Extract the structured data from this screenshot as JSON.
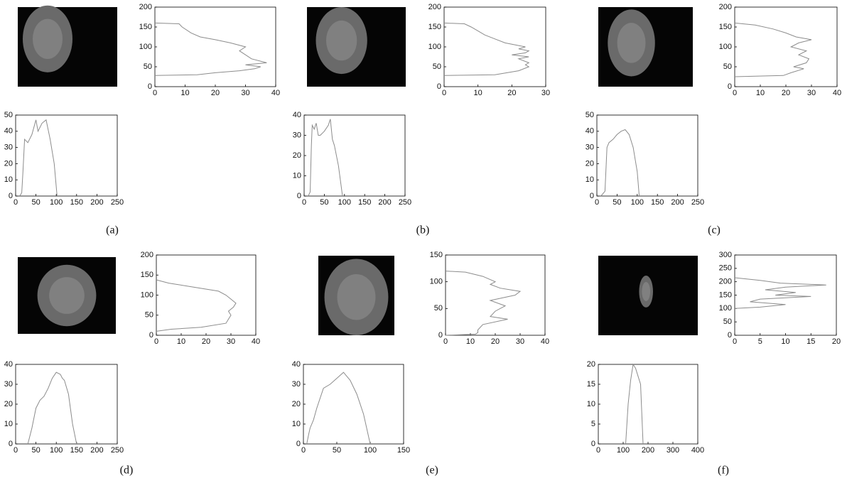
{
  "panel_labels": [
    "(a)",
    "(b)",
    "(c)",
    "(d)",
    "(e)",
    "(f)"
  ],
  "chart_data": [
    {
      "type": "line",
      "orientation": "horizontal",
      "color": "#8c8c8c",
      "xlim": [
        0,
        40
      ],
      "ylim": [
        0,
        200
      ],
      "xticks": [
        0,
        10,
        20,
        30,
        40
      ],
      "yticks": [
        0,
        50,
        100,
        150,
        200
      ],
      "y": [
        28,
        30,
        35,
        40,
        45,
        50,
        55,
        60,
        70,
        80,
        90,
        100,
        110,
        118,
        125,
        135,
        150,
        158,
        160
      ],
      "values": [
        0,
        14,
        20,
        28,
        33,
        35,
        30,
        37,
        32,
        30,
        28,
        30,
        25,
        20,
        15,
        12,
        9,
        8,
        0
      ]
    },
    {
      "type": "line",
      "orientation": "vertical",
      "color": "#8c8c8c",
      "xlim": [
        0,
        250
      ],
      "ylim": [
        0,
        50
      ],
      "xticks": [
        0,
        50,
        100,
        150,
        200,
        250
      ],
      "yticks": [
        0,
        10,
        20,
        30,
        40,
        50
      ],
      "x": [
        10,
        15,
        18,
        22,
        30,
        40,
        50,
        55,
        65,
        75,
        85,
        95,
        102
      ],
      "values": [
        0,
        2,
        15,
        35,
        33,
        38,
        47,
        40,
        45,
        47,
        35,
        20,
        0
      ]
    },
    {
      "type": "line",
      "orientation": "horizontal",
      "color": "#8c8c8c",
      "xlim": [
        0,
        30
      ],
      "ylim": [
        0,
        200
      ],
      "xticks": [
        0,
        10,
        20,
        30
      ],
      "yticks": [
        0,
        50,
        100,
        150,
        200
      ],
      "y": [
        28,
        30,
        40,
        50,
        55,
        60,
        70,
        75,
        80,
        85,
        90,
        95,
        100,
        110,
        120,
        130,
        140,
        150,
        158,
        160
      ],
      "values": [
        0,
        15,
        22,
        25,
        24,
        25,
        22,
        25,
        20,
        24,
        25,
        22,
        24,
        18,
        15,
        12,
        10,
        8,
        6,
        0
      ]
    },
    {
      "type": "line",
      "orientation": "vertical",
      "color": "#8c8c8c",
      "xlim": [
        0,
        250
      ],
      "ylim": [
        0,
        40
      ],
      "xticks": [
        0,
        50,
        100,
        150,
        200,
        250
      ],
      "yticks": [
        0,
        10,
        20,
        30,
        40
      ],
      "x": [
        10,
        15,
        18,
        20,
        25,
        30,
        35,
        40,
        50,
        60,
        65,
        70,
        75,
        85,
        95
      ],
      "values": [
        0,
        2,
        25,
        35,
        33,
        36,
        30,
        30,
        32,
        35,
        38,
        28,
        25,
        15,
        0
      ]
    },
    {
      "type": "line",
      "orientation": "horizontal",
      "color": "#8c8c8c",
      "xlim": [
        0,
        40
      ],
      "ylim": [
        0,
        200
      ],
      "xticks": [
        0,
        10,
        20,
        30,
        40
      ],
      "yticks": [
        0,
        50,
        100,
        150,
        200
      ],
      "y": [
        25,
        28,
        35,
        45,
        50,
        60,
        70,
        80,
        90,
        100,
        110,
        118,
        125,
        135,
        145,
        155,
        160
      ],
      "values": [
        0,
        19,
        22,
        27,
        23,
        28,
        29,
        25,
        28,
        22,
        25,
        30,
        24,
        20,
        15,
        8,
        0
      ]
    },
    {
      "type": "line",
      "orientation": "vertical",
      "color": "#8c8c8c",
      "xlim": [
        0,
        250
      ],
      "ylim": [
        0,
        50
      ],
      "xticks": [
        0,
        50,
        100,
        150,
        200,
        250
      ],
      "yticks": [
        0,
        10,
        20,
        30,
        40,
        50
      ],
      "x": [
        10,
        20,
        25,
        30,
        40,
        50,
        60,
        70,
        80,
        90,
        100,
        105
      ],
      "values": [
        0,
        3,
        30,
        33,
        35,
        38,
        40,
        41,
        38,
        30,
        15,
        0
      ]
    },
    {
      "type": "line",
      "orientation": "horizontal",
      "color": "#8c8c8c",
      "xlim": [
        0,
        40
      ],
      "ylim": [
        0,
        200
      ],
      "xticks": [
        0,
        10,
        20,
        30,
        40
      ],
      "yticks": [
        0,
        50,
        100,
        150,
        200
      ],
      "y": [
        10,
        15,
        20,
        30,
        40,
        50,
        60,
        70,
        80,
        90,
        100,
        110,
        120,
        130,
        138
      ],
      "values": [
        0,
        6,
        18,
        28,
        29,
        30,
        29,
        31,
        32,
        30,
        28,
        25,
        15,
        5,
        0
      ]
    },
    {
      "type": "line",
      "orientation": "vertical",
      "color": "#8c8c8c",
      "xlim": [
        0,
        250
      ],
      "ylim": [
        0,
        40
      ],
      "xticks": [
        0,
        50,
        100,
        150,
        200,
        250
      ],
      "yticks": [
        0,
        10,
        20,
        30,
        40
      ],
      "x": [
        30,
        40,
        50,
        60,
        70,
        80,
        90,
        100,
        110,
        115,
        120,
        130,
        140,
        150
      ],
      "values": [
        0,
        8,
        18,
        22,
        24,
        28,
        33,
        36,
        35,
        33,
        32,
        25,
        10,
        0
      ]
    },
    {
      "type": "line",
      "orientation": "horizontal",
      "color": "#8c8c8c",
      "xlim": [
        0,
        40
      ],
      "ylim": [
        0,
        150
      ],
      "xticks": [
        0,
        10,
        20,
        30,
        40
      ],
      "yticks": [
        0,
        50,
        100,
        150
      ],
      "y": [
        0,
        2,
        5,
        10,
        20,
        30,
        35,
        45,
        55,
        65,
        75,
        82,
        88,
        95,
        100,
        110,
        118,
        120
      ],
      "values": [
        0,
        12,
        13,
        13,
        15,
        25,
        18,
        20,
        24,
        18,
        28,
        30,
        22,
        18,
        20,
        15,
        8,
        0
      ]
    },
    {
      "type": "line",
      "orientation": "vertical",
      "color": "#8c8c8c",
      "xlim": [
        0,
        150
      ],
      "ylim": [
        0,
        40
      ],
      "xticks": [
        0,
        50,
        100,
        150
      ],
      "yticks": [
        0,
        10,
        20,
        30,
        40
      ],
      "x": [
        5,
        8,
        10,
        15,
        20,
        30,
        40,
        50,
        60,
        70,
        80,
        90,
        100
      ],
      "values": [
        0,
        5,
        8,
        12,
        18,
        28,
        30,
        33,
        36,
        32,
        25,
        15,
        0
      ]
    },
    {
      "type": "line",
      "orientation": "horizontal",
      "color": "#8c8c8c",
      "xlim": [
        0,
        20
      ],
      "ylim": [
        0,
        300
      ],
      "xticks": [
        0,
        5,
        10,
        15,
        20
      ],
      "yticks": [
        0,
        50,
        100,
        150,
        200,
        250,
        300
      ],
      "y": [
        100,
        105,
        115,
        125,
        135,
        145,
        150,
        160,
        170,
        180,
        188,
        195,
        205,
        215
      ],
      "values": [
        0,
        5,
        10,
        3,
        5,
        15,
        8,
        12,
        6,
        10,
        18,
        9,
        5,
        0
      ]
    },
    {
      "type": "line",
      "orientation": "vertical",
      "color": "#8c8c8c",
      "xlim": [
        0,
        400
      ],
      "ylim": [
        0,
        20
      ],
      "xticks": [
        0,
        100,
        200,
        300,
        400
      ],
      "yticks": [
        0,
        5,
        10,
        15,
        20
      ],
      "x": [
        110,
        120,
        130,
        140,
        150,
        160,
        170,
        180
      ],
      "values": [
        0,
        10,
        16,
        20,
        19,
        17,
        15,
        0
      ]
    }
  ]
}
